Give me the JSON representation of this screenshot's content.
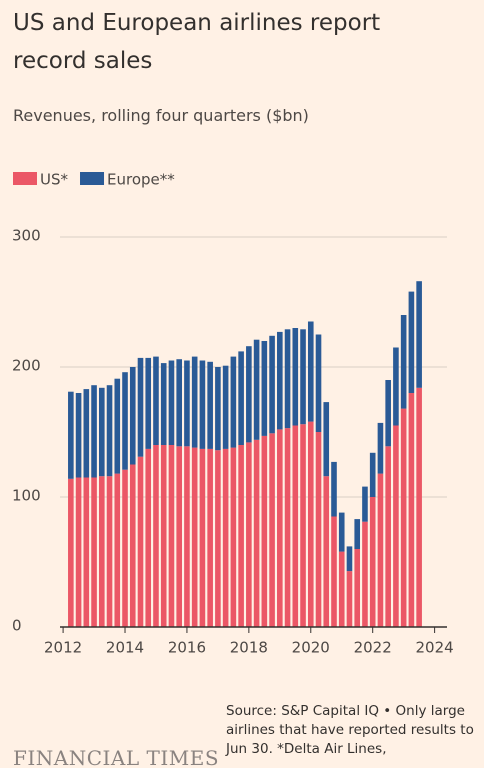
{
  "chart_data": {
    "type": "stacked_bar",
    "title": "US and European airlines report record sales",
    "subtitle": "Revenues, rolling four quarters ($bn)",
    "source": "Source: S&P Capital IQ • Only large airlines that have reported results to Jun 30. *Delta Air Lines,",
    "brand": "FINANCIAL TIMES",
    "x": [
      2012.25,
      2012.5,
      2012.75,
      2013,
      2013.25,
      2013.5,
      2013.75,
      2014,
      2014.25,
      2014.5,
      2014.75,
      2015,
      2015.25,
      2015.5,
      2015.75,
      2016,
      2016.25,
      2016.5,
      2016.75,
      2017,
      2017.25,
      2017.5,
      2017.75,
      2018,
      2018.25,
      2018.5,
      2018.75,
      2019,
      2019.25,
      2019.5,
      2019.75,
      2020,
      2020.25,
      2020.5,
      2020.75,
      2021,
      2021.25,
      2021.5,
      2021.75,
      2022,
      2022.25,
      2022.5,
      2022.75,
      2023,
      2023.25,
      2023.5
    ],
    "series": [
      {
        "name": "US*",
        "color": "#eb5766",
        "values": [
          114,
          115,
          115,
          115,
          116,
          116,
          118,
          121,
          125,
          131,
          137,
          140,
          140,
          140,
          139,
          139,
          138,
          137,
          137,
          136,
          137,
          138,
          140,
          142,
          144,
          147,
          149,
          152,
          153,
          155,
          156,
          158,
          150,
          116,
          85,
          58,
          43,
          60,
          81,
          100,
          118,
          139,
          155,
          168,
          180,
          184
        ]
      },
      {
        "name": "Europe**",
        "color": "#2a5a96",
        "values": [
          67,
          65,
          68,
          71,
          68,
          70,
          73,
          75,
          75,
          76,
          70,
          68,
          63,
          65,
          67,
          66,
          70,
          68,
          67,
          64,
          64,
          70,
          72,
          74,
          77,
          73,
          75,
          75,
          76,
          75,
          73,
          77,
          75,
          57,
          42,
          30,
          19,
          23,
          27,
          34,
          39,
          51,
          60,
          72,
          78,
          82
        ]
      }
    ],
    "xlim": [
      2011.9,
      2024.4
    ],
    "xticks": [
      2012,
      2014,
      2016,
      2018,
      2020,
      2022,
      2024
    ],
    "ylim": [
      0,
      300
    ],
    "yticks": [
      0,
      100,
      200,
      300
    ],
    "grid": true
  }
}
